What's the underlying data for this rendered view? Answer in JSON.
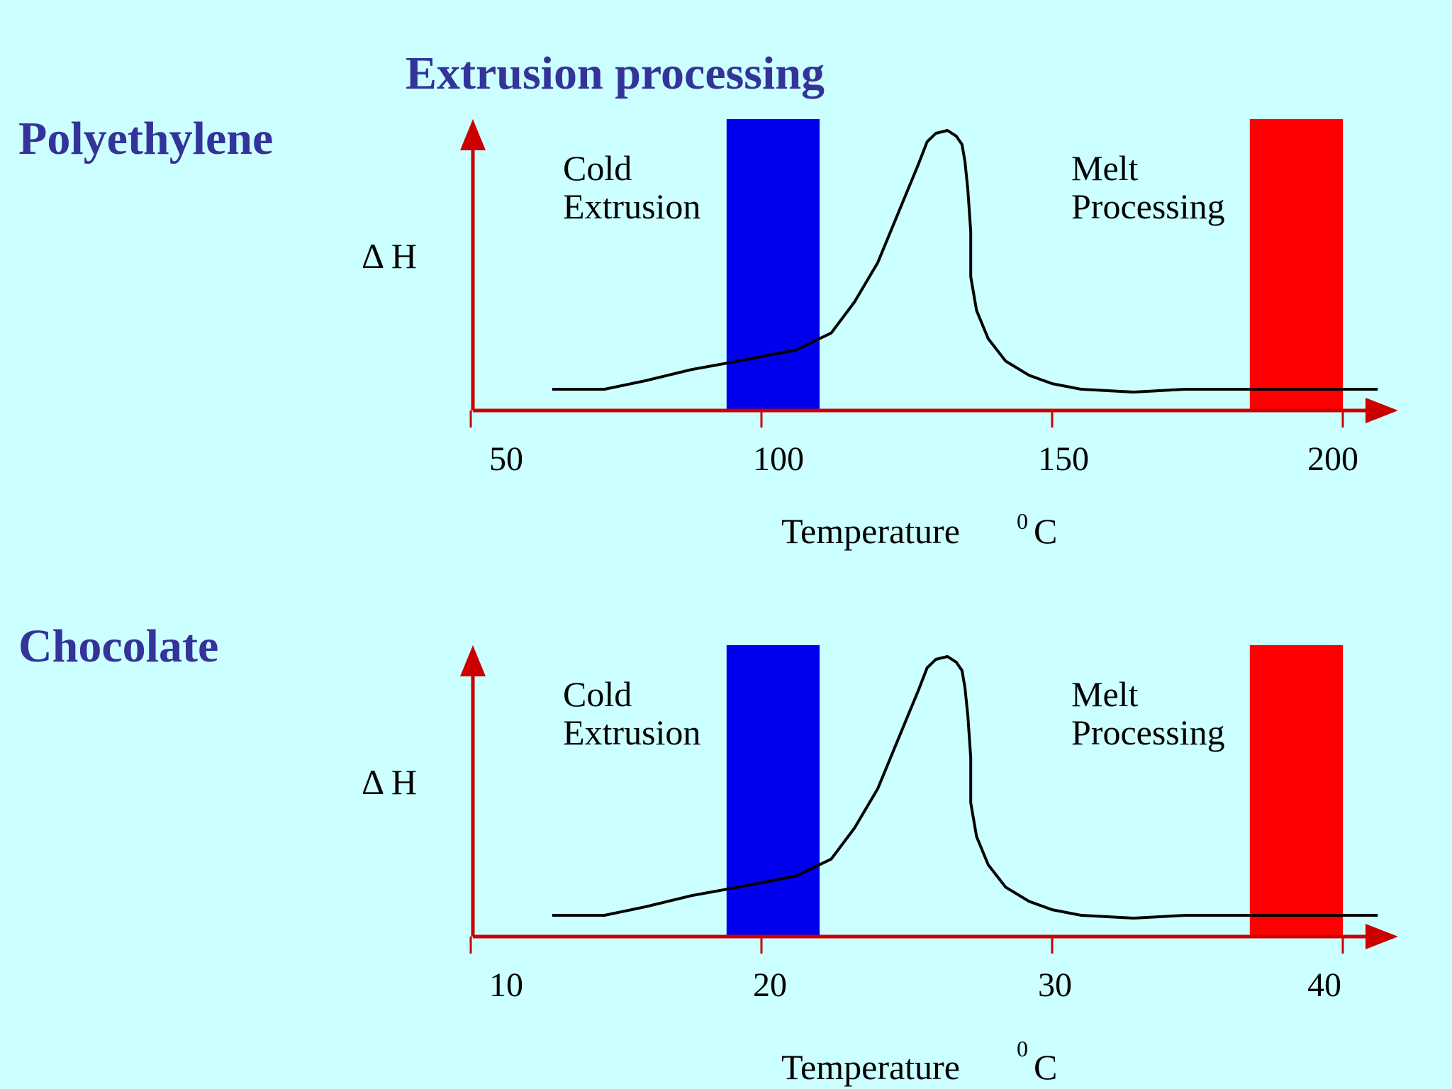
{
  "slide": {
    "title": "Extrusion processing"
  },
  "colors": {
    "background": "#ccffff",
    "heading": "#333399",
    "axis": "#cc0000",
    "cold_band": "#0000ee",
    "melt_band": "#ff0000",
    "curve": "#000000"
  },
  "chart_data": [
    {
      "type": "line",
      "material": "Polyethylene",
      "ylabel": "Δ H",
      "xlabel": "Temperature",
      "xunit_sup": "0",
      "xunit": "C",
      "xlim": [
        50,
        205
      ],
      "xticks": [
        50,
        100,
        150,
        200
      ],
      "ylim": [
        0,
        1
      ],
      "regions": [
        {
          "label_lines": [
            "Cold",
            "Extrusion"
          ],
          "x_start": 94,
          "x_end": 110,
          "color": "#0000ee"
        },
        {
          "label_lines": [
            "Melt",
            "Processing"
          ],
          "x_start": 184,
          "x_end": 200,
          "color": "#ff0000"
        }
      ],
      "series": [
        {
          "x": [
            64,
            73,
            80,
            88,
            96,
            101,
            106,
            109,
            112,
            116,
            120,
            124,
            127,
            128.5,
            130,
            132,
            133.5,
            134.5,
            135,
            135.5,
            136,
            136,
            137,
            139,
            142,
            146,
            150,
            155,
            164,
            173,
            182,
            191,
            200,
            206
          ],
          "y": [
            0.08,
            0.08,
            0.11,
            0.15,
            0.18,
            0.2,
            0.22,
            0.25,
            0.28,
            0.39,
            0.53,
            0.73,
            0.88,
            0.96,
            0.99,
            1.0,
            0.98,
            0.95,
            0.89,
            0.79,
            0.64,
            0.48,
            0.36,
            0.26,
            0.18,
            0.13,
            0.1,
            0.08,
            0.07,
            0.08,
            0.08,
            0.08,
            0.08,
            0.08
          ]
        }
      ]
    },
    {
      "type": "line",
      "material": "Chocolate",
      "ylabel": "Δ H",
      "xlabel": "Temperature",
      "xunit_sup": "0",
      "xunit": "C",
      "xlim": [
        10,
        41
      ],
      "xticks": [
        10,
        20,
        30,
        40
      ],
      "ylim": [
        0,
        1
      ],
      "regions": [
        {
          "label_lines": [
            "Cold",
            "Extrusion"
          ],
          "x_start": 18.8,
          "x_end": 22,
          "color": "#0000ee"
        },
        {
          "label_lines": [
            "Melt",
            "Processing"
          ],
          "x_start": 36.8,
          "x_end": 40,
          "color": "#ff0000"
        }
      ],
      "series": [
        {
          "x": [
            12.8,
            14.6,
            16,
            17.6,
            19.2,
            20.2,
            21.2,
            21.8,
            22.4,
            23.2,
            24,
            24.8,
            25.4,
            25.7,
            26,
            26.4,
            26.7,
            26.9,
            27,
            27.1,
            27.2,
            27.2,
            27.4,
            27.8,
            28.4,
            29.2,
            30,
            31,
            32.8,
            34.6,
            36.4,
            38.2,
            40,
            41.2
          ],
          "y": [
            0.08,
            0.08,
            0.11,
            0.15,
            0.18,
            0.2,
            0.22,
            0.25,
            0.28,
            0.39,
            0.53,
            0.73,
            0.88,
            0.96,
            0.99,
            1.0,
            0.98,
            0.95,
            0.89,
            0.79,
            0.64,
            0.48,
            0.36,
            0.26,
            0.18,
            0.13,
            0.1,
            0.08,
            0.07,
            0.08,
            0.08,
            0.08,
            0.08,
            0.08
          ]
        }
      ]
    }
  ]
}
